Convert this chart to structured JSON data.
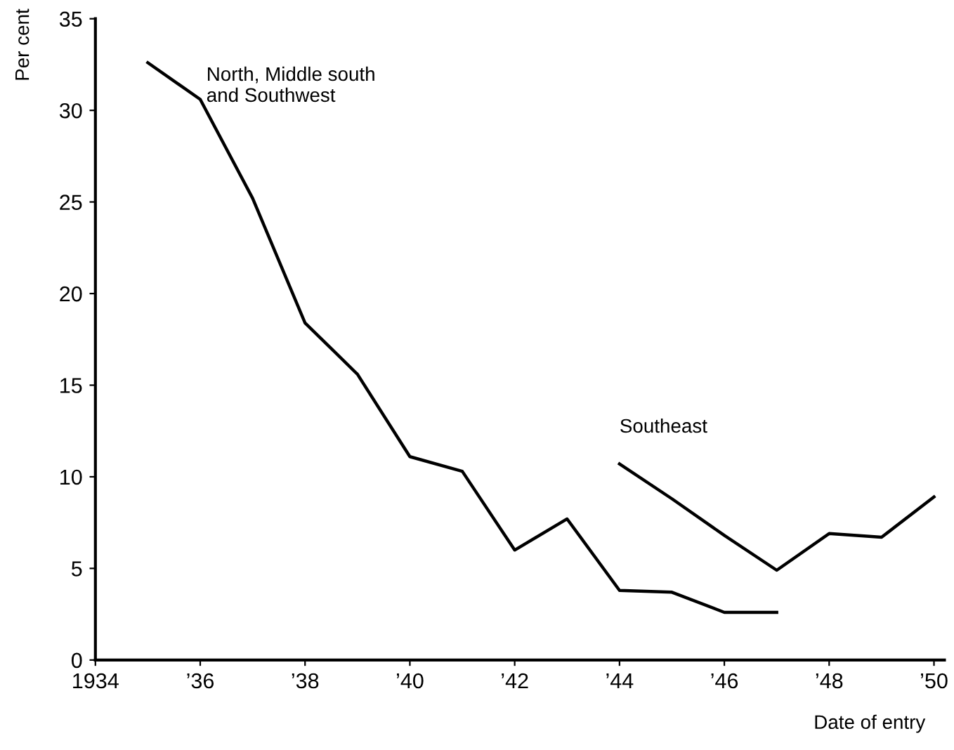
{
  "chart_data": {
    "type": "line",
    "ylabel": "Per cent",
    "xlabel": "Date of entry",
    "xlim": [
      1934,
      1950.2
    ],
    "ylim": [
      0,
      35
    ],
    "xticks": [
      {
        "value": 1934,
        "label": "1934"
      },
      {
        "value": 1936,
        "label": "’36"
      },
      {
        "value": 1938,
        "label": "’38"
      },
      {
        "value": 1940,
        "label": "’40"
      },
      {
        "value": 1942,
        "label": "’42"
      },
      {
        "value": 1944,
        "label": "’44"
      },
      {
        "value": 1946,
        "label": "’46"
      },
      {
        "value": 1948,
        "label": "’48"
      },
      {
        "value": 1950,
        "label": "’50"
      }
    ],
    "yticks": [
      0,
      5,
      10,
      15,
      20,
      25,
      30,
      35
    ],
    "grid": false,
    "legend": false,
    "marker": "none",
    "line_style": "solid",
    "series": [
      {
        "name": "North, Middle south\nand Southwest",
        "color": "#000000",
        "x": [
          1935,
          1936,
          1937,
          1938,
          1939,
          1940,
          1941,
          1942,
          1943,
          1944,
          1945,
          1946,
          1947
        ],
        "values": [
          32.6,
          30.6,
          25.2,
          18.4,
          15.6,
          11.1,
          10.3,
          6.0,
          7.7,
          3.8,
          3.7,
          2.6,
          2.6
        ]
      },
      {
        "name": "Southeast",
        "color": "#000000",
        "x": [
          1944,
          1945,
          1946,
          1947,
          1948,
          1949,
          1950
        ],
        "values": [
          10.7,
          8.8,
          6.8,
          4.9,
          6.9,
          6.7,
          8.9
        ]
      }
    ]
  }
}
